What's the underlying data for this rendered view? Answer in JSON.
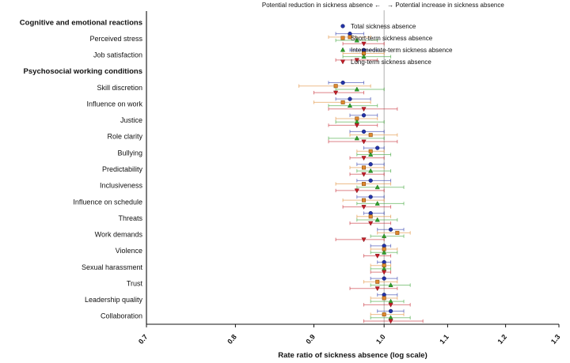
{
  "chart_data": {
    "type": "scatter",
    "subtype": "forest-plot",
    "top_annotation_left": "Potential reduction in sickness absence ←",
    "top_annotation_right": "→ Potential increase in sickness absence",
    "xlabel": "Rate ratio of sickness absence (log scale)",
    "xlim": [
      0.7,
      1.3
    ],
    "xticks": [
      "0.7",
      "0.8",
      "0.9",
      "1.0",
      "1.1",
      "1.2",
      "1.3"
    ],
    "log_scale": true,
    "reference_line": 1.0,
    "reference_line_color": "#b0b0b0",
    "legend_position": "top-right",
    "series": [
      {
        "name": "Total sickness absence",
        "marker": "circle",
        "color": "#2433a8"
      },
      {
        "name": "Short-term sickness absence",
        "marker": "square",
        "color": "#e0882e"
      },
      {
        "name": "Intermediate-term sickness absence",
        "marker": "triangle-up",
        "color": "#33a02c"
      },
      {
        "name": "Long-term sickness absence",
        "marker": "triangle-down",
        "color": "#c41e28"
      }
    ],
    "groups": [
      {
        "header": "Cognitive and emotional reactions",
        "items": [
          {
            "label": "Perceived stress",
            "values": [
              [
                0.95,
                0.93,
                0.97
              ],
              [
                0.95,
                0.92,
                0.98
              ],
              [
                0.96,
                0.93,
                0.99
              ],
              [
                0.97,
                0.94,
                1.0
              ]
            ]
          },
          {
            "label": "Job satisfaction",
            "values": [
              [
                0.97,
                0.95,
                0.99
              ],
              [
                0.97,
                0.94,
                1.0
              ],
              [
                0.97,
                0.94,
                1.01
              ],
              [
                0.96,
                0.93,
                0.99
              ]
            ]
          }
        ]
      },
      {
        "header": "Psychosocial working conditions",
        "items": [
          {
            "label": "Skill discretion",
            "values": [
              [
                0.94,
                0.92,
                0.97
              ],
              [
                0.93,
                0.88,
                0.98
              ],
              [
                0.96,
                0.93,
                1.0
              ],
              [
                0.93,
                0.9,
                0.97
              ]
            ]
          },
          {
            "label": "Influence on work",
            "values": [
              [
                0.95,
                0.93,
                0.98
              ],
              [
                0.94,
                0.9,
                0.98
              ],
              [
                0.95,
                0.92,
                0.99
              ],
              [
                0.97,
                0.92,
                1.02
              ]
            ]
          },
          {
            "label": "Justice",
            "values": [
              [
                0.97,
                0.95,
                0.99
              ],
              [
                0.96,
                0.93,
                0.99
              ],
              [
                0.96,
                0.93,
                1.0
              ],
              [
                0.96,
                0.92,
                0.99
              ]
            ]
          },
          {
            "label": "Role clarity",
            "values": [
              [
                0.97,
                0.95,
                1.0
              ],
              [
                0.98,
                0.95,
                1.02
              ],
              [
                0.96,
                0.92,
                1.0
              ],
              [
                0.97,
                0.92,
                1.02
              ]
            ]
          },
          {
            "label": "Bullying",
            "values": [
              [
                0.99,
                0.97,
                1.0
              ],
              [
                0.98,
                0.96,
                1.0
              ],
              [
                0.98,
                0.96,
                1.01
              ],
              [
                0.97,
                0.95,
                1.0
              ]
            ]
          },
          {
            "label": "Predictability",
            "values": [
              [
                0.98,
                0.96,
                1.0
              ],
              [
                0.97,
                0.95,
                1.0
              ],
              [
                0.98,
                0.96,
                1.01
              ],
              [
                0.97,
                0.95,
                1.0
              ]
            ]
          },
          {
            "label": "Inclusiveness",
            "values": [
              [
                0.98,
                0.96,
                1.01
              ],
              [
                0.97,
                0.93,
                1.01
              ],
              [
                0.99,
                0.96,
                1.03
              ],
              [
                0.96,
                0.93,
                1.0
              ]
            ]
          },
          {
            "label": "Influence on schedule",
            "values": [
              [
                0.98,
                0.96,
                1.0
              ],
              [
                0.97,
                0.94,
                1.0
              ],
              [
                0.99,
                0.96,
                1.03
              ],
              [
                0.97,
                0.94,
                1.01
              ]
            ]
          },
          {
            "label": "Threats",
            "values": [
              [
                0.98,
                0.97,
                1.0
              ],
              [
                0.98,
                0.96,
                1.01
              ],
              [
                0.99,
                0.96,
                1.02
              ],
              [
                0.98,
                0.95,
                1.01
              ]
            ]
          },
          {
            "label": "Work demands",
            "values": [
              [
                1.01,
                0.99,
                1.03
              ],
              [
                1.02,
                0.99,
                1.04
              ],
              [
                1.0,
                0.98,
                1.03
              ],
              [
                0.97,
                0.93,
                1.0
              ]
            ]
          },
          {
            "label": "Violence",
            "values": [
              [
                1.0,
                0.98,
                1.01
              ],
              [
                1.0,
                0.98,
                1.02
              ],
              [
                1.0,
                0.98,
                1.02
              ],
              [
                0.99,
                0.97,
                1.01
              ]
            ]
          },
          {
            "label": "Sexual harassment",
            "values": [
              [
                1.0,
                0.99,
                1.01
              ],
              [
                1.0,
                0.98,
                1.01
              ],
              [
                1.0,
                0.98,
                1.01
              ],
              [
                1.0,
                0.98,
                1.01
              ]
            ]
          },
          {
            "label": "Trust",
            "values": [
              [
                1.0,
                0.98,
                1.02
              ],
              [
                0.99,
                0.97,
                1.02
              ],
              [
                1.01,
                0.98,
                1.04
              ],
              [
                0.99,
                0.95,
                1.02
              ]
            ]
          },
          {
            "label": "Leadership quality",
            "values": [
              [
                1.0,
                0.99,
                1.02
              ],
              [
                1.0,
                0.98,
                1.02
              ],
              [
                1.01,
                0.98,
                1.03
              ],
              [
                1.01,
                0.97,
                1.04
              ]
            ]
          },
          {
            "label": "Collaboration",
            "values": [
              [
                1.01,
                0.99,
                1.03
              ],
              [
                1.0,
                0.98,
                1.03
              ],
              [
                1.01,
                0.98,
                1.04
              ],
              [
                1.01,
                0.97,
                1.06
              ]
            ]
          }
        ]
      }
    ]
  }
}
